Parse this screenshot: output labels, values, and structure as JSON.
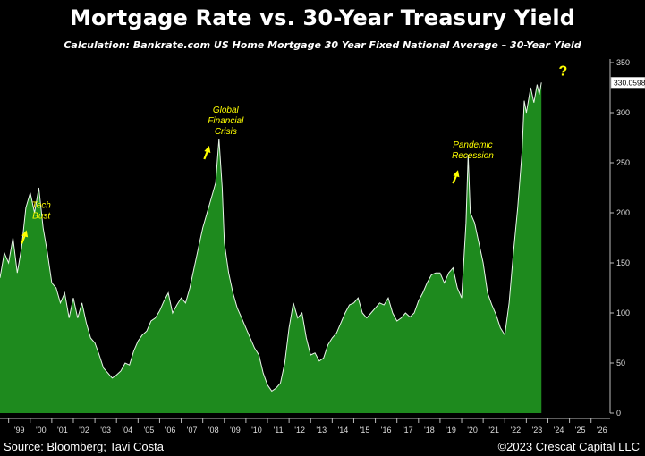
{
  "title": "Mortgage Rate vs. 30-Year Treasury Yield",
  "subtitle": "Calculation: Bankrate.com US Home Mortgage 30 Year Fixed National Average – 30-Year Yield",
  "source": "Source: Bloomberg; Tavi Costa",
  "copyright": "©2023 Crescat Capital LLC",
  "colors": {
    "area_fill": "#1e8a1e",
    "line": "#e8f5e8",
    "annotation": "#ffff00",
    "background": "#000000"
  },
  "chart_data": {
    "type": "area",
    "title": "Mortgage Rate vs. 30-Year Treasury Yield",
    "xlabel": "",
    "ylabel": "",
    "ylim": [
      0,
      350
    ],
    "xlim": [
      1998.6,
      2026.8
    ],
    "y_ticks": [
      "0",
      "50",
      "100",
      "150",
      "200",
      "250",
      "300",
      "350"
    ],
    "x_ticks": [
      "'99",
      "'00",
      "'01",
      "'02",
      "'03",
      "'04",
      "'05",
      "'06",
      "'07",
      "'08",
      "'09",
      "'10",
      "'11",
      "'12",
      "'13",
      "'14",
      "'15",
      "'16",
      "'17",
      "'18",
      "'19",
      "'20",
      "'21",
      "'22",
      "'23",
      "'24",
      "'25",
      "'26"
    ],
    "last_value_label": "330.0598",
    "grid": false,
    "series": [
      {
        "values": [
          [
            1998.6,
            135
          ],
          [
            1998.8,
            160
          ],
          [
            1999.0,
            150
          ],
          [
            1999.2,
            175
          ],
          [
            1999.4,
            140
          ],
          [
            1999.6,
            165
          ],
          [
            1999.8,
            205
          ],
          [
            2000.0,
            220
          ],
          [
            2000.2,
            200
          ],
          [
            2000.4,
            225
          ],
          [
            2000.6,
            185
          ],
          [
            2000.8,
            160
          ],
          [
            2001.0,
            130
          ],
          [
            2001.2,
            125
          ],
          [
            2001.4,
            110
          ],
          [
            2001.6,
            120
          ],
          [
            2001.8,
            95
          ],
          [
            2002.0,
            115
          ],
          [
            2002.2,
            95
          ],
          [
            2002.4,
            110
          ],
          [
            2002.6,
            90
          ],
          [
            2002.8,
            75
          ],
          [
            2003.0,
            70
          ],
          [
            2003.2,
            58
          ],
          [
            2003.4,
            45
          ],
          [
            2003.6,
            40
          ],
          [
            2003.8,
            35
          ],
          [
            2004.0,
            38
          ],
          [
            2004.2,
            42
          ],
          [
            2004.4,
            50
          ],
          [
            2004.6,
            48
          ],
          [
            2004.8,
            62
          ],
          [
            2005.0,
            72
          ],
          [
            2005.2,
            78
          ],
          [
            2005.4,
            82
          ],
          [
            2005.6,
            92
          ],
          [
            2005.8,
            95
          ],
          [
            2006.0,
            102
          ],
          [
            2006.2,
            112
          ],
          [
            2006.4,
            120
          ],
          [
            2006.6,
            100
          ],
          [
            2006.8,
            108
          ],
          [
            2007.0,
            115
          ],
          [
            2007.2,
            110
          ],
          [
            2007.4,
            125
          ],
          [
            2007.6,
            145
          ],
          [
            2007.8,
            165
          ],
          [
            2008.0,
            185
          ],
          [
            2008.2,
            200
          ],
          [
            2008.4,
            215
          ],
          [
            2008.6,
            230
          ],
          [
            2008.75,
            274
          ],
          [
            2008.9,
            225
          ],
          [
            2009.0,
            170
          ],
          [
            2009.2,
            140
          ],
          [
            2009.4,
            120
          ],
          [
            2009.6,
            105
          ],
          [
            2009.8,
            95
          ],
          [
            2010.0,
            85
          ],
          [
            2010.2,
            75
          ],
          [
            2010.4,
            65
          ],
          [
            2010.6,
            58
          ],
          [
            2010.8,
            40
          ],
          [
            2011.0,
            28
          ],
          [
            2011.2,
            22
          ],
          [
            2011.4,
            25
          ],
          [
            2011.6,
            30
          ],
          [
            2011.8,
            50
          ],
          [
            2012.0,
            85
          ],
          [
            2012.2,
            110
          ],
          [
            2012.4,
            95
          ],
          [
            2012.6,
            100
          ],
          [
            2012.8,
            75
          ],
          [
            2013.0,
            58
          ],
          [
            2013.2,
            60
          ],
          [
            2013.4,
            52
          ],
          [
            2013.6,
            55
          ],
          [
            2013.8,
            68
          ],
          [
            2014.0,
            75
          ],
          [
            2014.2,
            80
          ],
          [
            2014.4,
            90
          ],
          [
            2014.6,
            100
          ],
          [
            2014.8,
            108
          ],
          [
            2015.0,
            110
          ],
          [
            2015.2,
            115
          ],
          [
            2015.4,
            100
          ],
          [
            2015.6,
            95
          ],
          [
            2015.8,
            100
          ],
          [
            2016.0,
            105
          ],
          [
            2016.2,
            110
          ],
          [
            2016.4,
            108
          ],
          [
            2016.6,
            115
          ],
          [
            2016.8,
            100
          ],
          [
            2017.0,
            92
          ],
          [
            2017.2,
            95
          ],
          [
            2017.4,
            100
          ],
          [
            2017.6,
            96
          ],
          [
            2017.8,
            100
          ],
          [
            2018.0,
            112
          ],
          [
            2018.2,
            120
          ],
          [
            2018.4,
            130
          ],
          [
            2018.6,
            138
          ],
          [
            2018.8,
            140
          ],
          [
            2019.0,
            140
          ],
          [
            2019.2,
            130
          ],
          [
            2019.4,
            140
          ],
          [
            2019.6,
            145
          ],
          [
            2019.8,
            125
          ],
          [
            2020.0,
            115
          ],
          [
            2020.2,
            190
          ],
          [
            2020.3,
            258
          ],
          [
            2020.4,
            200
          ],
          [
            2020.6,
            190
          ],
          [
            2020.8,
            170
          ],
          [
            2021.0,
            150
          ],
          [
            2021.2,
            120
          ],
          [
            2021.4,
            108
          ],
          [
            2021.6,
            98
          ],
          [
            2021.8,
            85
          ],
          [
            2022.0,
            78
          ],
          [
            2022.2,
            110
          ],
          [
            2022.4,
            160
          ],
          [
            2022.6,
            205
          ],
          [
            2022.8,
            260
          ],
          [
            2022.9,
            312
          ],
          [
            2023.0,
            300
          ],
          [
            2023.2,
            325
          ],
          [
            2023.35,
            310
          ],
          [
            2023.5,
            328
          ],
          [
            2023.6,
            318
          ],
          [
            2023.7,
            330.06
          ]
        ]
      }
    ],
    "annotations": [
      {
        "text": "Tech\nBust",
        "x": 2000.1,
        "y": 205
      },
      {
        "text": "Global\nFinancial\nCrisis",
        "x": 2008.65,
        "y": 300
      },
      {
        "text": "Pandemic\nRecession",
        "x": 2020.1,
        "y": 265
      },
      {
        "text": "?",
        "x": 2024.7,
        "y": 337
      }
    ]
  }
}
